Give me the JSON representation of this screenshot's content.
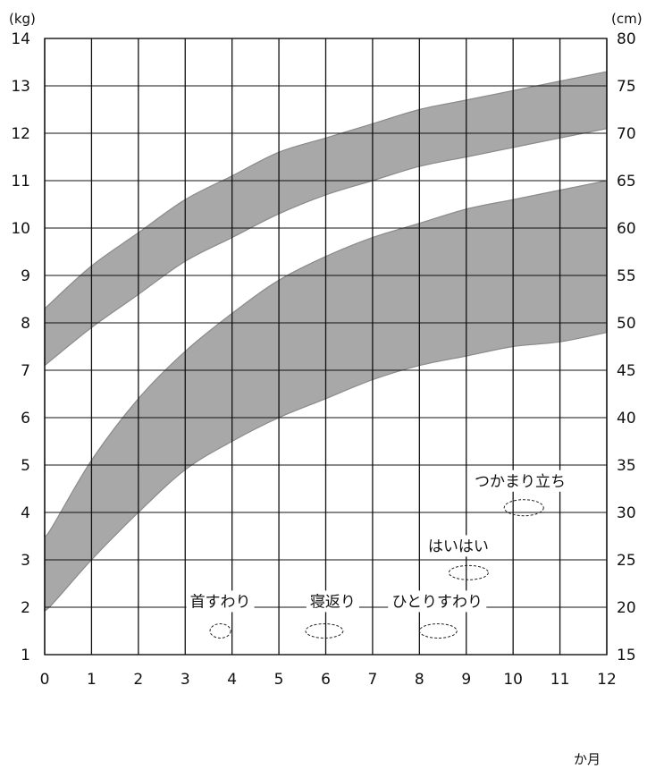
{
  "chart_data": {
    "type": "area",
    "left_unit": "(kg)",
    "right_unit": "(cm)",
    "x_unit": "か月",
    "x_ticks": [
      "0",
      "1",
      "2",
      "3",
      "4",
      "5",
      "6",
      "7",
      "8",
      "9",
      "10",
      "11",
      "12"
    ],
    "y_left_ticks": [
      "1",
      "2",
      "3",
      "4",
      "5",
      "6",
      "7",
      "8",
      "9",
      "10",
      "11",
      "12",
      "13",
      "14"
    ],
    "y_right_ticks": [
      "15",
      "20",
      "25",
      "30",
      "35",
      "40",
      "45",
      "50",
      "55",
      "60",
      "65",
      "70",
      "75",
      "80"
    ],
    "xlim": [
      0,
      12
    ],
    "ylim_left": [
      1,
      14
    ],
    "ylim_right": [
      15,
      80
    ],
    "grid": true,
    "series": [
      {
        "axis": "right",
        "x": [
          0,
          1,
          2,
          3,
          4,
          5,
          6,
          7,
          8,
          9,
          10,
          11,
          12
        ],
        "lower": [
          45.5,
          49.5,
          53,
          56.5,
          59,
          61.5,
          63.5,
          65,
          66.5,
          67.5,
          68.5,
          69.5,
          70.5
        ],
        "upper": [
          51.5,
          56,
          59.5,
          63,
          65.5,
          68,
          69.5,
          71,
          72.5,
          73.5,
          74.5,
          75.5,
          76.5
        ]
      },
      {
        "axis": "left",
        "x": [
          0,
          0.1,
          1,
          2,
          3,
          4,
          5,
          6,
          7,
          8,
          9,
          10,
          11,
          12
        ],
        "lower": [
          2.0,
          2.0,
          3.0,
          4.0,
          4.9,
          5.5,
          6.0,
          6.4,
          6.8,
          7.1,
          7.3,
          7.5,
          7.6,
          7.8
        ],
        "upper": [
          3.6,
          3.6,
          5.1,
          6.4,
          7.4,
          8.2,
          8.9,
          9.4,
          9.8,
          10.1,
          10.4,
          10.6,
          10.8,
          11.0
        ]
      }
    ],
    "milestones": [
      {
        "label": "首すわり",
        "x": 3.75,
        "y": 1.5,
        "rx": 0.22,
        "ry": 0.15,
        "label_x": 3.75,
        "label_y": 2.03
      },
      {
        "label": "寝返り",
        "x": 5.97,
        "y": 1.5,
        "rx": 0.4,
        "ry": 0.15,
        "label_x": 6.15,
        "label_y": 2.03
      },
      {
        "label": "ひとりすわり",
        "x": 8.4,
        "y": 1.5,
        "rx": 0.4,
        "ry": 0.15,
        "label_x": 8.38,
        "label_y": 2.03
      },
      {
        "label": "はいはい",
        "x": 9.05,
        "y": 2.73,
        "rx": 0.42,
        "ry": 0.15,
        "label_x": 8.83,
        "label_y": 3.2
      },
      {
        "label": "つかまり立ち",
        "x": 10.23,
        "y": 4.1,
        "rx": 0.42,
        "ry": 0.17,
        "label_x": 10.15,
        "label_y": 4.57
      }
    ]
  }
}
